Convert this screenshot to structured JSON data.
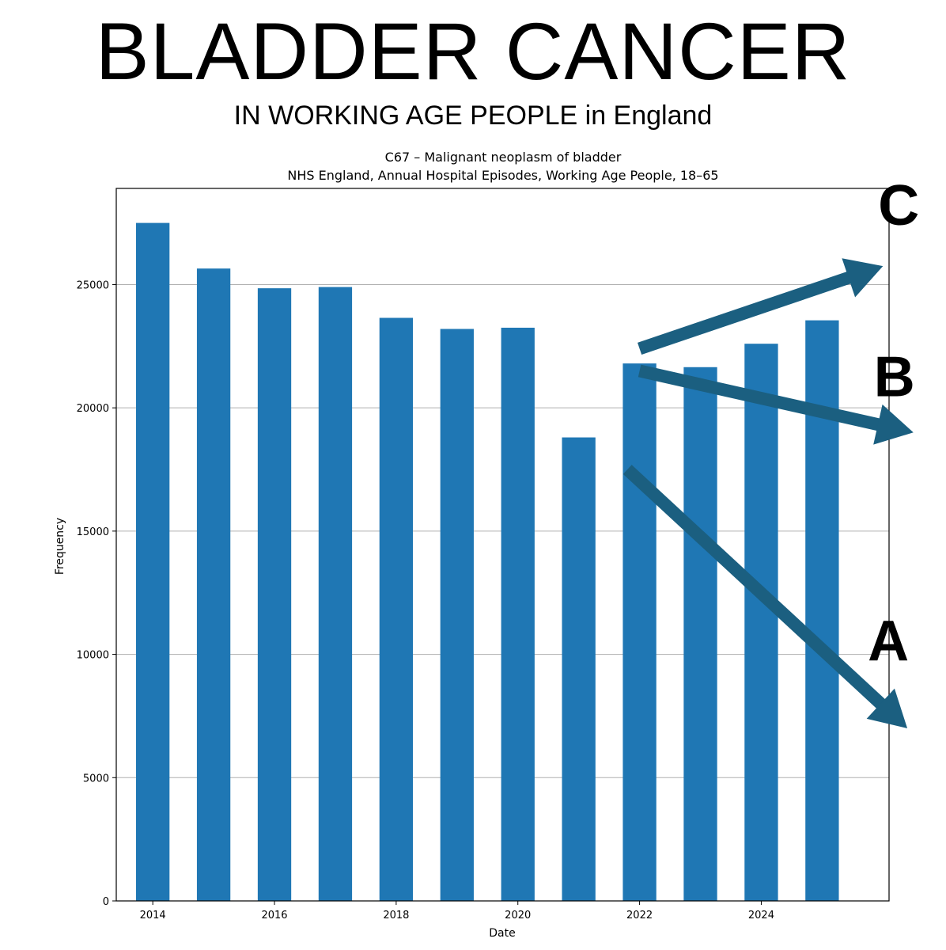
{
  "headline": "BLADDER CANCER",
  "subheadline": "IN WORKING AGE PEOPLE in England",
  "chart_data": {
    "type": "bar",
    "title": "C67 – Malignant neoplasm of bladder",
    "subtitle": "NHS England, Annual Hospital Episodes, Working Age People, 18–65",
    "xlabel": "Date",
    "ylabel": "Frequency",
    "x": [
      2014,
      2015,
      2016,
      2017,
      2018,
      2019,
      2020,
      2021,
      2022,
      2023,
      2024,
      2025
    ],
    "values": [
      27500,
      25650,
      24850,
      24900,
      23650,
      23200,
      23250,
      18800,
      21800,
      21650,
      22600,
      23550
    ],
    "xlim": [
      2013.4,
      2026.1
    ],
    "ylim": [
      0,
      28900
    ],
    "xticks": [
      "2014",
      "2016",
      "2018",
      "2020",
      "2022",
      "2024"
    ],
    "yticks": [
      "0",
      "5000",
      "10000",
      "15000",
      "20000",
      "25000"
    ],
    "grid": "horizontal",
    "bar_color": "#1f77b4",
    "annotations": [
      {
        "label": "C",
        "from": [
          2022.0,
          22400
        ],
        "to": [
          2026.0,
          25750
        ],
        "color": "#1b5f80"
      },
      {
        "label": "B",
        "from": [
          2022.0,
          21500
        ],
        "to": [
          2026.5,
          19000
        ],
        "color": "#1b5f80"
      },
      {
        "label": "A",
        "from": [
          2021.8,
          17500
        ],
        "to": [
          2026.4,
          7000
        ],
        "color": "#1b5f80"
      }
    ]
  }
}
